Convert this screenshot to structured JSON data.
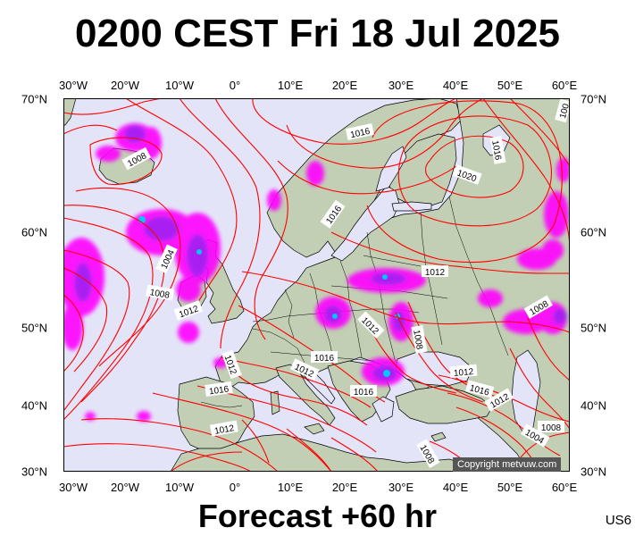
{
  "title": "0200 CEST Fri 18 Jul 2025",
  "footer": "Forecast +60 hr",
  "code": "US6",
  "copyright": "Copyright metvuw.com",
  "lon_labels": [
    "30°W",
    "20°W",
    "10°W",
    "0°",
    "10°E",
    "20°E",
    "30°E",
    "40°E",
    "50°E",
    "60°E"
  ],
  "lat_labels": [
    "70°N",
    "60°N",
    "50°N",
    "40°N",
    "30°N"
  ],
  "colors": {
    "sea": "#e4e4f8",
    "land": "#c2cfb4",
    "isobar": "#ff0000",
    "precip_light": "#ff00ff",
    "precip_med": "#a020f0",
    "precip_heavy": "#00c8ff"
  },
  "isobar_labels": [
    {
      "text": "1016"
    },
    {
      "text": "1008"
    },
    {
      "text": "1016"
    },
    {
      "text": "1020"
    },
    {
      "text": "1016"
    },
    {
      "text": "1004"
    },
    {
      "text": "1008"
    },
    {
      "text": "1012"
    },
    {
      "text": "1012"
    },
    {
      "text": "1012"
    },
    {
      "text": "1008"
    },
    {
      "text": "1008"
    },
    {
      "text": "1012"
    },
    {
      "text": "1016"
    },
    {
      "text": "1012"
    },
    {
      "text": "1016"
    },
    {
      "text": "1016"
    },
    {
      "text": "1012"
    },
    {
      "text": "1016"
    },
    {
      "text": "1012"
    },
    {
      "text": "1012"
    },
    {
      "text": "1004"
    },
    {
      "text": "1008"
    },
    {
      "text": "1008"
    },
    {
      "text": "100"
    }
  ]
}
